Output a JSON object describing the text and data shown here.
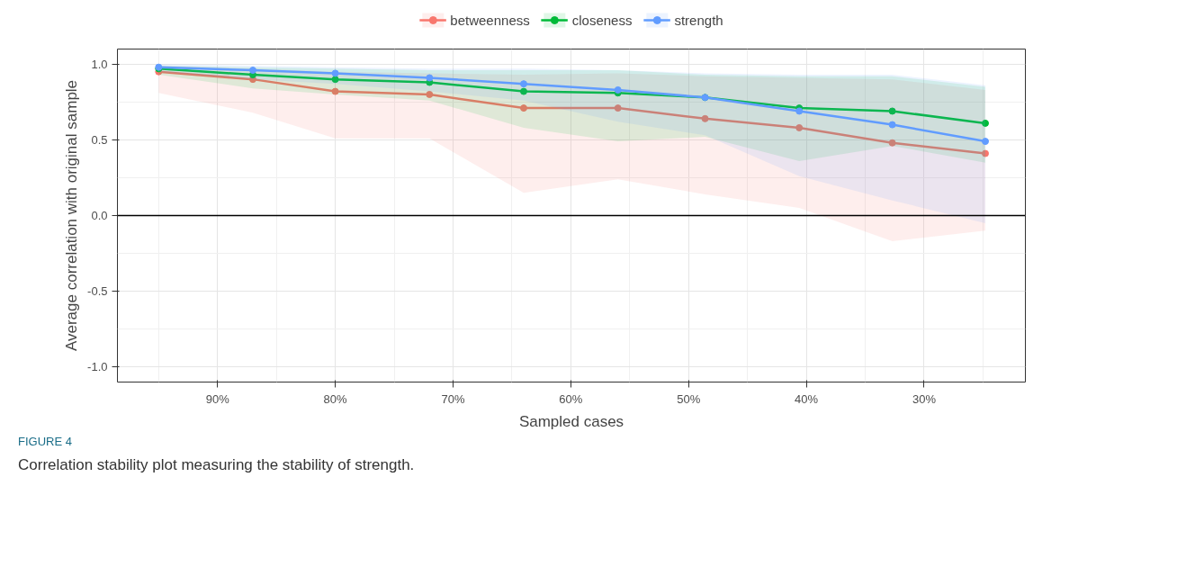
{
  "chart_data": {
    "type": "line",
    "xlabel": "Sampled cases",
    "ylabel": "Average correlation with original sample",
    "x": [
      95,
      87,
      80,
      72,
      64,
      56,
      48.6,
      40.6,
      32.7,
      24.8
    ],
    "series": [
      {
        "name": "betweenness",
        "color": "#f8766d",
        "values": [
          0.95,
          0.9,
          0.82,
          0.8,
          0.71,
          0.71,
          0.64,
          0.58,
          0.48,
          0.41
        ],
        "lower": [
          0.81,
          0.68,
          0.51,
          0.51,
          0.15,
          0.24,
          0.14,
          0.05,
          -0.17,
          -0.1
        ],
        "upper": [
          0.99,
          0.97,
          0.95,
          0.94,
          0.93,
          0.94,
          0.92,
          0.91,
          0.9,
          0.83
        ]
      },
      {
        "name": "closeness",
        "color": "#00ba38",
        "values": [
          0.97,
          0.93,
          0.9,
          0.88,
          0.82,
          0.81,
          0.78,
          0.71,
          0.69,
          0.61
        ],
        "lower": [
          0.93,
          0.84,
          0.8,
          0.76,
          0.58,
          0.49,
          0.52,
          0.36,
          0.46,
          0.35
        ],
        "upper": [
          0.99,
          0.98,
          0.97,
          0.96,
          0.96,
          0.96,
          0.93,
          0.92,
          0.92,
          0.85
        ]
      },
      {
        "name": "strength",
        "color": "#619cff",
        "values": [
          0.98,
          0.96,
          0.94,
          0.91,
          0.87,
          0.83,
          0.78,
          0.69,
          0.6,
          0.49
        ],
        "lower": [
          0.95,
          0.9,
          0.87,
          0.82,
          0.76,
          0.62,
          0.53,
          0.26,
          0.1,
          -0.05
        ],
        "upper": [
          1.0,
          0.99,
          0.98,
          0.97,
          0.97,
          0.96,
          0.94,
          0.93,
          0.93,
          0.86
        ]
      }
    ],
    "xlim": [
      98.5,
      21.4
    ],
    "xticks": [
      {
        "value": 90,
        "label": "90%"
      },
      {
        "value": 80,
        "label": "80%"
      },
      {
        "value": 70,
        "label": "70%"
      },
      {
        "value": 60,
        "label": "60%"
      },
      {
        "value": 50,
        "label": "50%"
      },
      {
        "value": 40,
        "label": "40%"
      },
      {
        "value": 30,
        "label": "30%"
      }
    ],
    "ylim": [
      -1.1,
      1.1
    ],
    "yticks": [
      {
        "value": -1,
        "label": "-1.0"
      },
      {
        "value": -0.5,
        "label": "-0.5"
      },
      {
        "value": 0,
        "label": "0.0"
      },
      {
        "value": 0.5,
        "label": "0.5"
      },
      {
        "value": 1,
        "label": "1.0"
      }
    ],
    "ref_lines": [
      {
        "axis": "y",
        "value": 0,
        "color": "#000000"
      }
    ],
    "grid": true,
    "legend": "top",
    "marker": "circle",
    "line_style": "solid",
    "annotations": [
      "FIGURE 4",
      "Correlation stability plot measuring the stability of strength."
    ]
  }
}
